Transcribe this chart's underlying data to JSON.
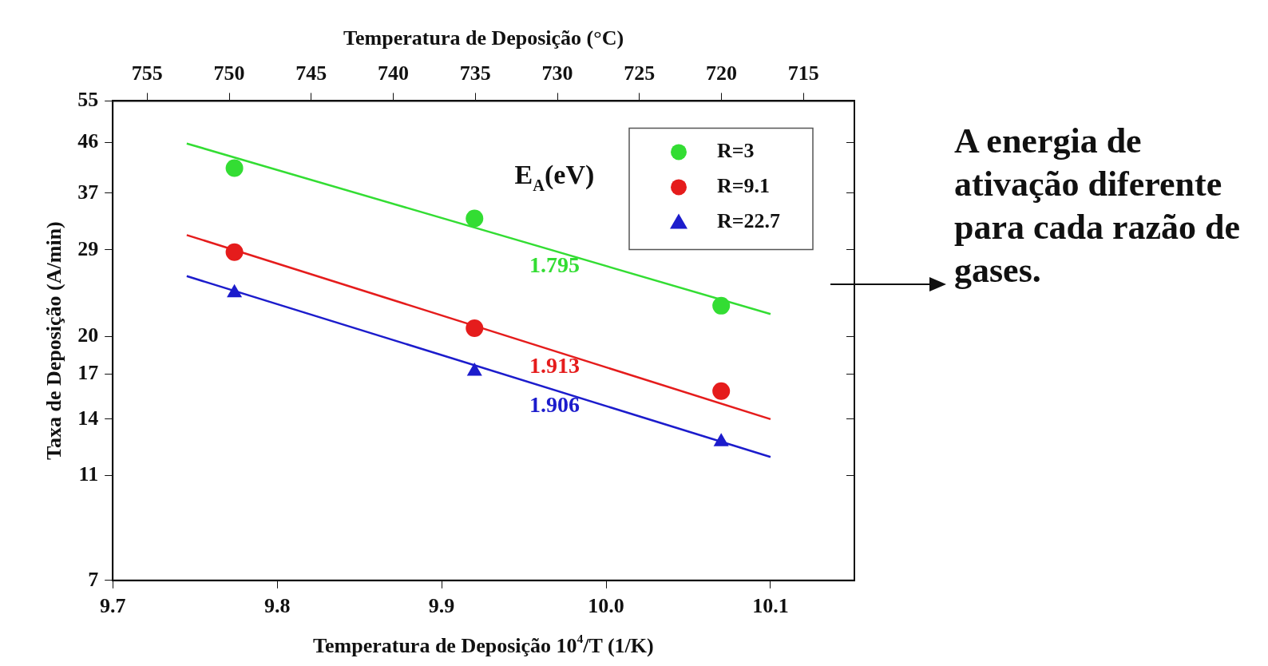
{
  "chart_data": {
    "type": "scatter",
    "xlabel": "Temperatura de Deposição 10$^{4}$/T (1/K)",
    "ylabel": "Taxa de Deposição (A/min)",
    "x2label": "Temperatura de Deposição (°C)",
    "xlim": [
      9.7,
      10.151
    ],
    "xticks": [
      9.7,
      9.8,
      9.9,
      {
        "value": 10.0,
        "label": "10.0"
      },
      10.1
    ],
    "x2lim": [
      757.1,
      711.9
    ],
    "x2ticks": [
      755,
      750,
      745,
      740,
      735,
      730,
      725,
      720,
      715
    ],
    "ylim": [
      7,
      55
    ],
    "yticks": [
      7,
      11,
      14,
      17,
      20,
      29,
      37,
      46,
      55
    ],
    "log": "y",
    "grid": false,
    "legend": "top right",
    "series": [
      {
        "name": "R=3",
        "marker": "circle",
        "color": "#33dd33",
        "x": [
          9.774,
          9.92,
          10.07
        ],
        "values": [
          41.2,
          33.2,
          22.8
        ]
      },
      {
        "name": "R=9.1",
        "marker": "circle",
        "color": "#e51c1c",
        "x": [
          9.774,
          9.92,
          10.07
        ],
        "values": [
          28.7,
          20.7,
          15.8
        ]
      },
      {
        "name": "R=22.7",
        "marker": "triangle",
        "color": "#1c1ccc",
        "x": [
          9.774,
          9.92,
          10.07
        ],
        "values": [
          24.1,
          17.2,
          12.7
        ]
      },
      {
        "type": "line",
        "marker": "none",
        "color": "#33dd33",
        "x": [
          9.745,
          10.1
        ],
        "values": [
          45.8,
          22
        ]
      },
      {
        "type": "line",
        "marker": "none",
        "color": "#e51c1c",
        "x": [
          9.745,
          10.1
        ],
        "values": [
          30.9,
          14
        ]
      },
      {
        "type": "line",
        "marker": "none",
        "color": "#1c1ccc",
        "x": [
          9.745,
          10.1
        ],
        "values": [
          25.9,
          11.9
        ]
      }
    ],
    "annotations": [
      "E$_{A}$(eV)",
      "1.795",
      "1.913",
      "1.906",
      "A energia de ativação diferente para cada razão de gases."
    ]
  }
}
